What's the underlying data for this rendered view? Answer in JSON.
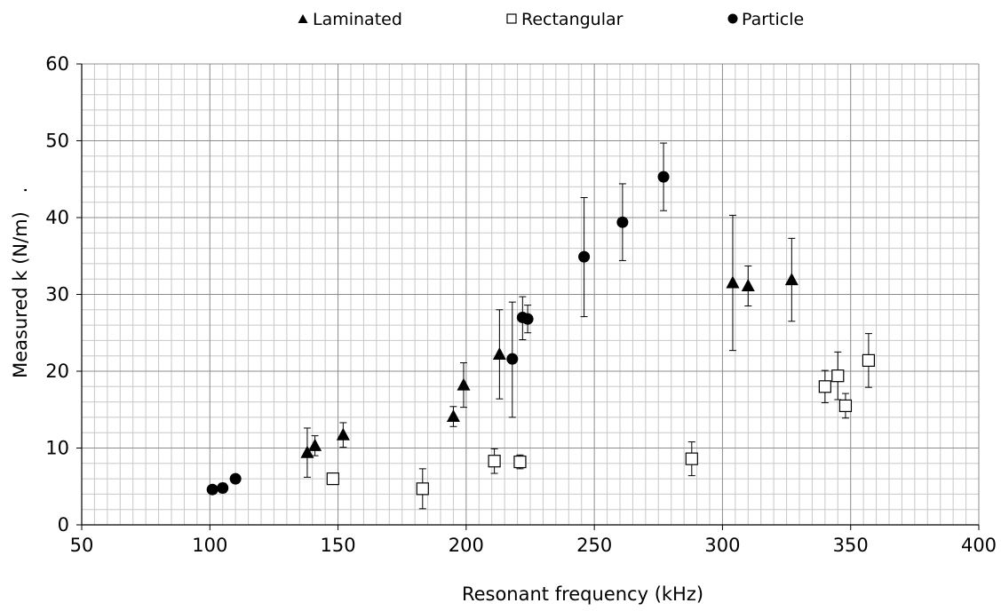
{
  "chart_data": {
    "type": "scatter",
    "xlabel": "Resonant frequency (kHz)",
    "ylabel": "Measured k (N/m)",
    "ylabel_suffix": ".",
    "xlim": [
      50,
      400
    ],
    "ylim": [
      0,
      60
    ],
    "xticks": [
      50,
      100,
      150,
      200,
      250,
      300,
      350,
      400
    ],
    "yticks": [
      0,
      10,
      20,
      30,
      40,
      50,
      60
    ],
    "x_minor_step": 5,
    "y_minor_step": 2,
    "grid": true,
    "legend_position": "top",
    "series": [
      {
        "name": "Laminated",
        "marker": "filled-triangle",
        "color": "#000000",
        "points": [
          {
            "x": 138,
            "y": 9.4,
            "err_low": 3.2,
            "err_high": 3.2
          },
          {
            "x": 141,
            "y": 10.3,
            "err_low": 1.3,
            "err_high": 1.3
          },
          {
            "x": 152,
            "y": 11.7,
            "err_low": 1.6,
            "err_high": 1.6
          },
          {
            "x": 195,
            "y": 14.1,
            "err_low": 1.3,
            "err_high": 1.3
          },
          {
            "x": 199,
            "y": 18.2,
            "err_low": 2.9,
            "err_high": 2.9
          },
          {
            "x": 213,
            "y": 22.2,
            "err_low": 5.8,
            "err_high": 5.8
          },
          {
            "x": 304,
            "y": 31.5,
            "err_low": 8.8,
            "err_high": 8.8
          },
          {
            "x": 310,
            "y": 31.1,
            "err_low": 2.6,
            "err_high": 2.6
          },
          {
            "x": 327,
            "y": 31.9,
            "err_low": 5.4,
            "err_high": 5.4
          }
        ]
      },
      {
        "name": "Rectangular",
        "marker": "open-square",
        "color": "#000000",
        "points": [
          {
            "x": 148,
            "y": 6.0,
            "err_low": 0.0,
            "err_high": 0.0
          },
          {
            "x": 183,
            "y": 4.7,
            "err_low": 2.6,
            "err_high": 2.6
          },
          {
            "x": 211,
            "y": 8.3,
            "err_low": 1.6,
            "err_high": 1.6
          },
          {
            "x": 221,
            "y": 8.2,
            "err_low": 0.9,
            "err_high": 0.9
          },
          {
            "x": 288,
            "y": 8.6,
            "err_low": 2.2,
            "err_high": 2.2
          },
          {
            "x": 340,
            "y": 18.0,
            "err_low": 2.1,
            "err_high": 2.1
          },
          {
            "x": 345,
            "y": 19.4,
            "err_low": 3.1,
            "err_high": 3.1
          },
          {
            "x": 348,
            "y": 15.5,
            "err_low": 1.6,
            "err_high": 1.6
          },
          {
            "x": 357,
            "y": 21.4,
            "err_low": 3.5,
            "err_high": 3.5
          }
        ]
      },
      {
        "name": "Particle",
        "marker": "filled-circle",
        "color": "#000000",
        "points": [
          {
            "x": 101,
            "y": 4.6,
            "err_low": 0.0,
            "err_high": 0.0
          },
          {
            "x": 105,
            "y": 4.8,
            "err_low": 0.6,
            "err_high": 0.6
          },
          {
            "x": 110,
            "y": 6.0,
            "err_low": 0.5,
            "err_high": 0.5
          },
          {
            "x": 218,
            "y": 21.6,
            "err_low": 7.6,
            "err_high": 7.4
          },
          {
            "x": 222,
            "y": 27.0,
            "err_low": 2.9,
            "err_high": 2.7
          },
          {
            "x": 224,
            "y": 26.8,
            "err_low": 1.8,
            "err_high": 1.8
          },
          {
            "x": 246,
            "y": 34.9,
            "err_low": 7.8,
            "err_high": 7.7
          },
          {
            "x": 261,
            "y": 39.4,
            "err_low": 5.0,
            "err_high": 5.0
          },
          {
            "x": 277,
            "y": 45.3,
            "err_low": 4.4,
            "err_high": 4.4
          }
        ]
      }
    ]
  }
}
